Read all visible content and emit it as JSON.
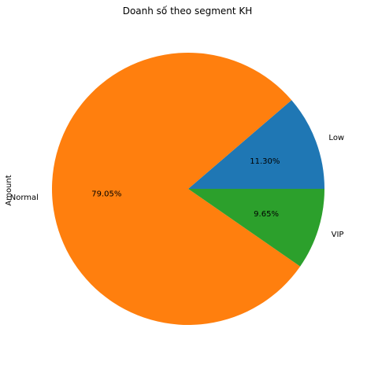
{
  "chart_data": {
    "type": "pie",
    "title": "Doanh số theo segment KH",
    "ylabel": "Amount",
    "categories": [
      "Low",
      "Normal",
      "VIP"
    ],
    "values": [
      11.3,
      79.05,
      9.65
    ],
    "percent_labels": [
      "11.30%",
      "79.05%",
      "9.65%"
    ],
    "colors": [
      "#1f77b4",
      "#ff7f0e",
      "#2ca02c"
    ],
    "start_angle_deg": 0,
    "direction": "counterclockwise",
    "legend": "none"
  }
}
